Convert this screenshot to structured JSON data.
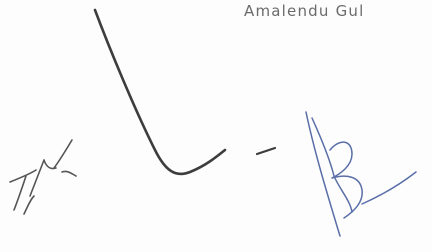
{
  "header": {
    "name": "Amalendu Gul"
  }
}
